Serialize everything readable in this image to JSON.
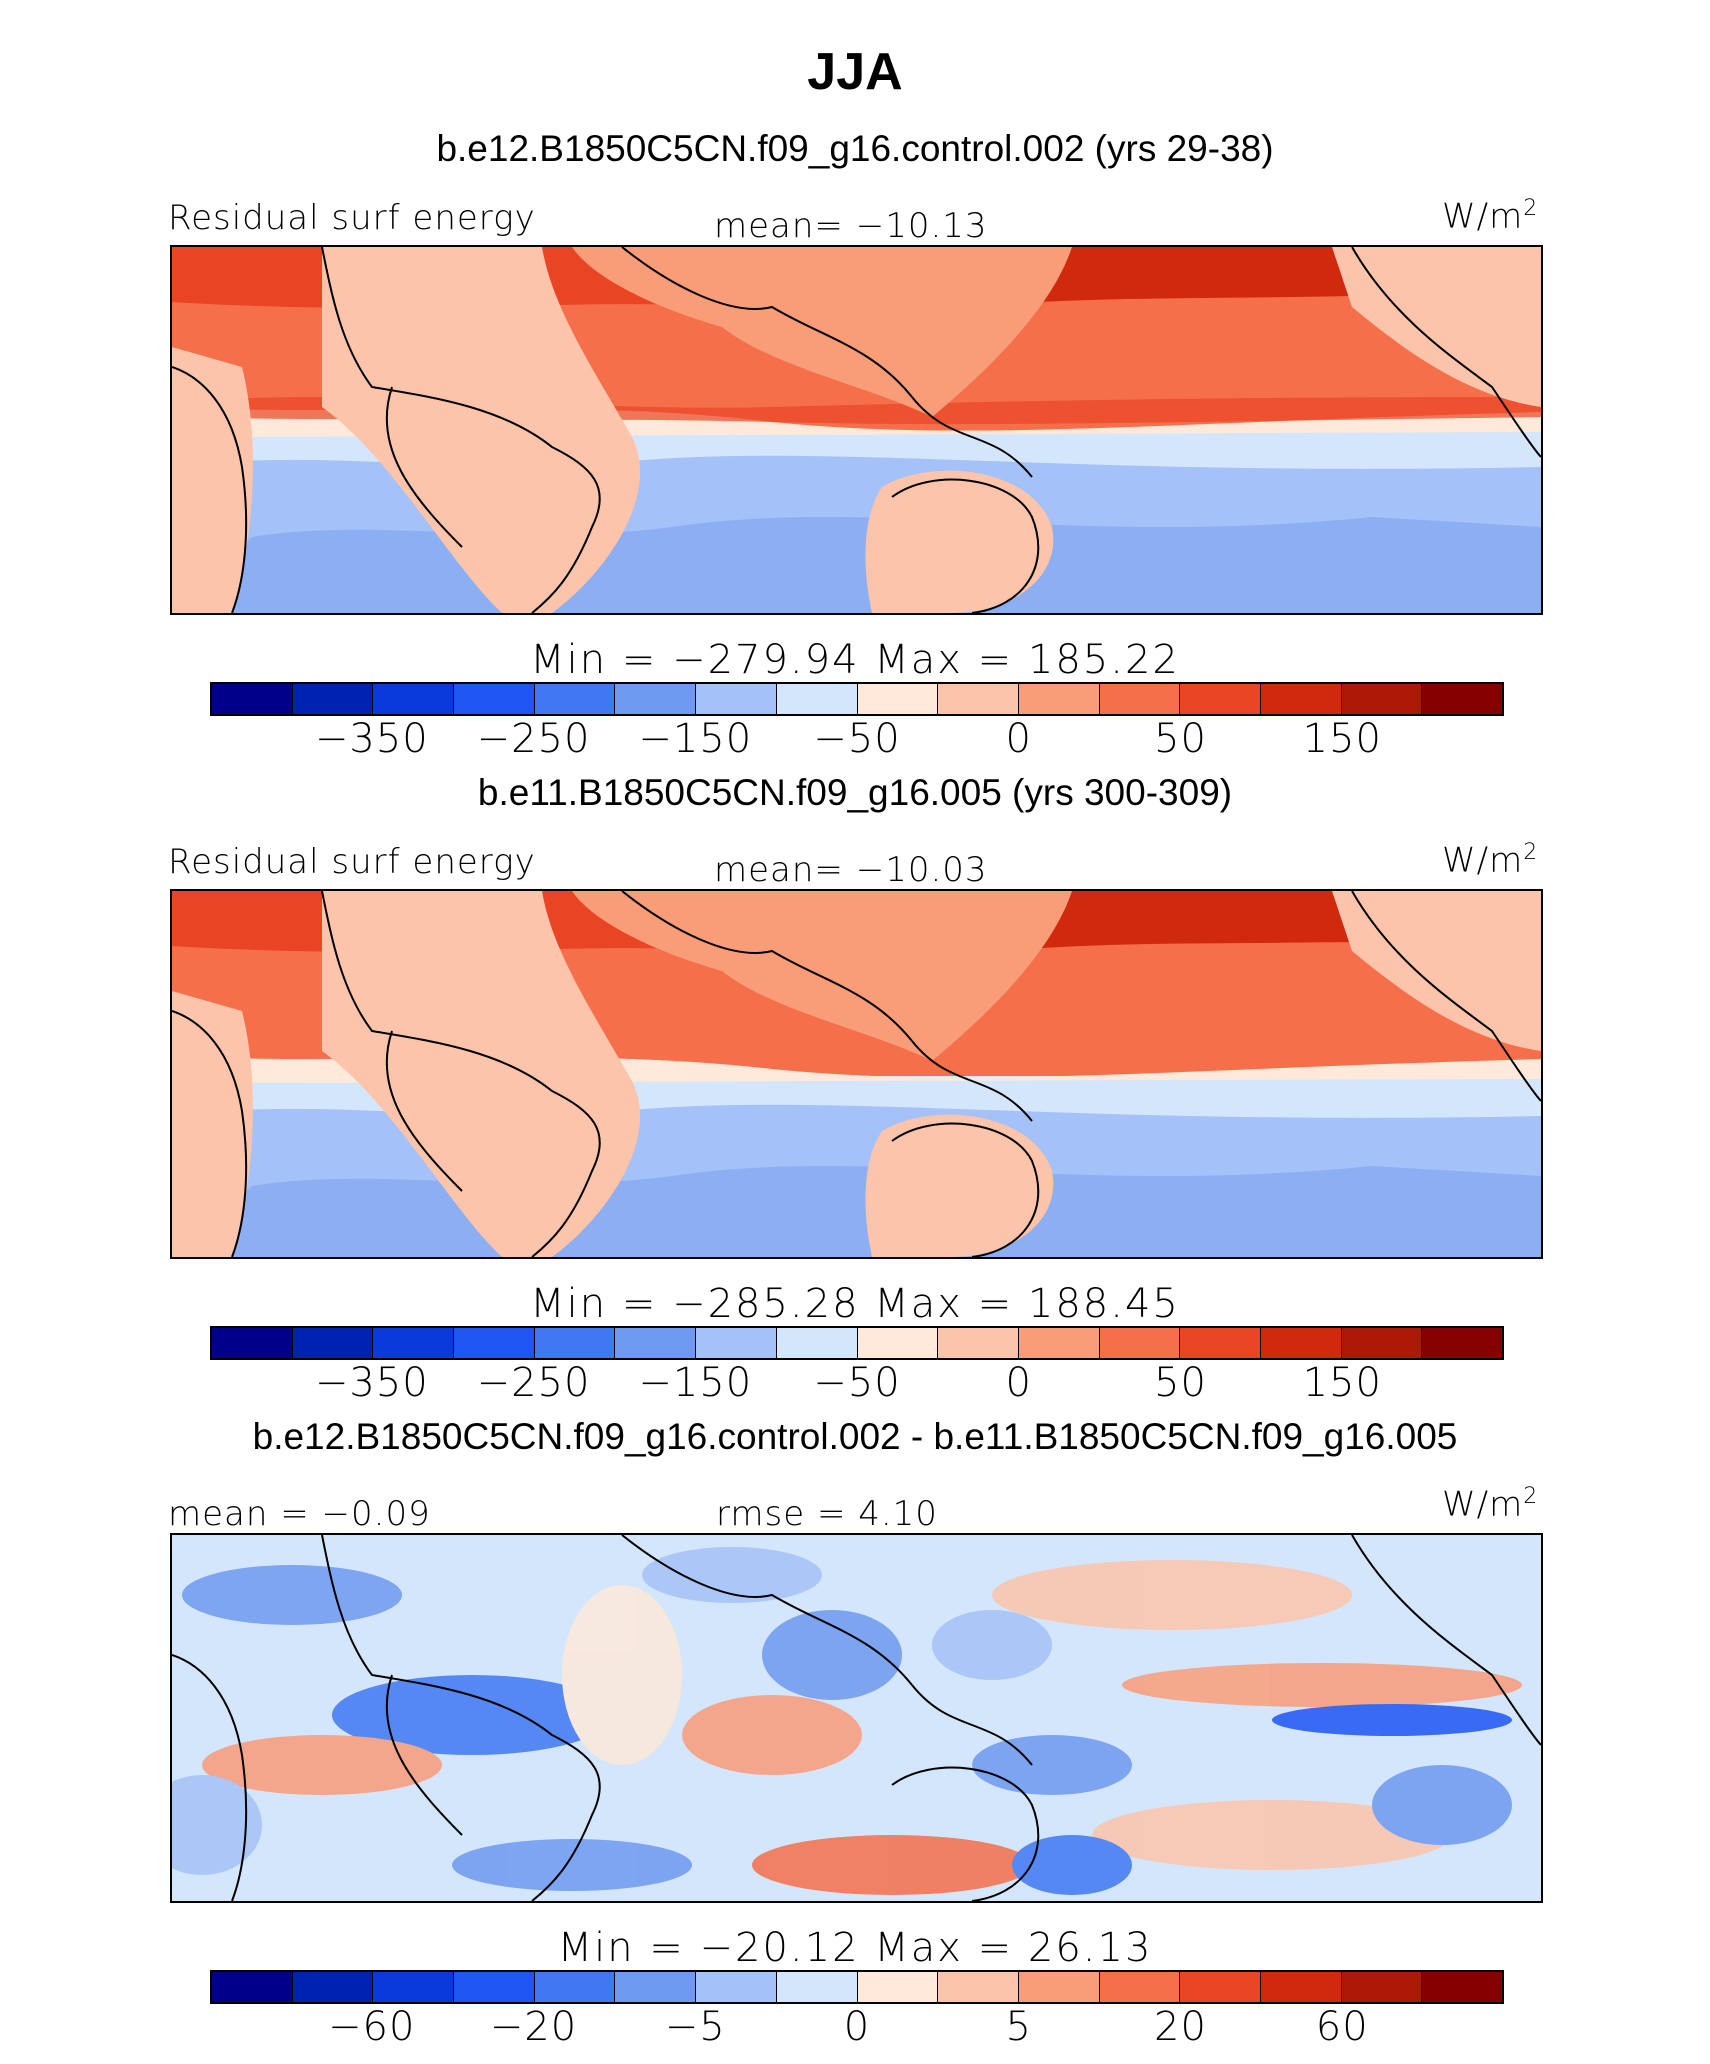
{
  "title": "JJA",
  "colors": {
    "palette": [
      "#00008b",
      "#0022b0",
      "#0a3adc",
      "#1f55f2",
      "#3f78f2",
      "#6e99f0",
      "#a4c2f7",
      "#d4e6fb",
      "#fee9da",
      "#fcc4aa",
      "#f99c78",
      "#f46f4a",
      "#e94423",
      "#d0290c",
      "#ad1906",
      "#870000"
    ]
  },
  "chart_data": [
    {
      "type": "heatmap",
      "case_label": "b.e12.B1850C5CN.f09_g16.control.002 (yrs 29-38)",
      "left_label": "Residual surf energy",
      "center_label": "mean= −10.13",
      "units": "W/m",
      "units_sup": "2",
      "minmax": "Min = −279.94 Max = 185.22",
      "min": -279.94,
      "max": 185.22,
      "mean": -10.13,
      "colorbar_ticks": [
        "−350",
        "−250",
        "−150",
        "−50",
        "0",
        "50",
        "150"
      ],
      "colorbar_levels": 16
    },
    {
      "type": "heatmap",
      "case_label": "b.e11.B1850C5CN.f09_g16.005 (yrs 300-309)",
      "left_label": "Residual surf energy",
      "center_label": "mean= −10.03",
      "units": "W/m",
      "units_sup": "2",
      "minmax": "Min = −285.28 Max = 188.45",
      "min": -285.28,
      "max": 188.45,
      "mean": -10.03,
      "colorbar_ticks": [
        "−350",
        "−250",
        "−150",
        "−50",
        "0",
        "50",
        "150"
      ],
      "colorbar_levels": 16
    },
    {
      "type": "heatmap",
      "case_label": "b.e12.B1850C5CN.f09_g16.control.002 - b.e11.B1850C5CN.f09_g16.005",
      "left_label": "mean =  −0.09",
      "center_label": "rmse =    4.10",
      "units": "W/m",
      "units_sup": "2",
      "minmax": "Min = −20.12 Max =  26.13",
      "min": -20.12,
      "max": 26.13,
      "mean": -0.09,
      "rmse": 4.1,
      "colorbar_ticks": [
        "−60",
        "−20",
        "−5",
        "0",
        "5",
        "20",
        "60"
      ],
      "colorbar_levels": 16
    }
  ]
}
